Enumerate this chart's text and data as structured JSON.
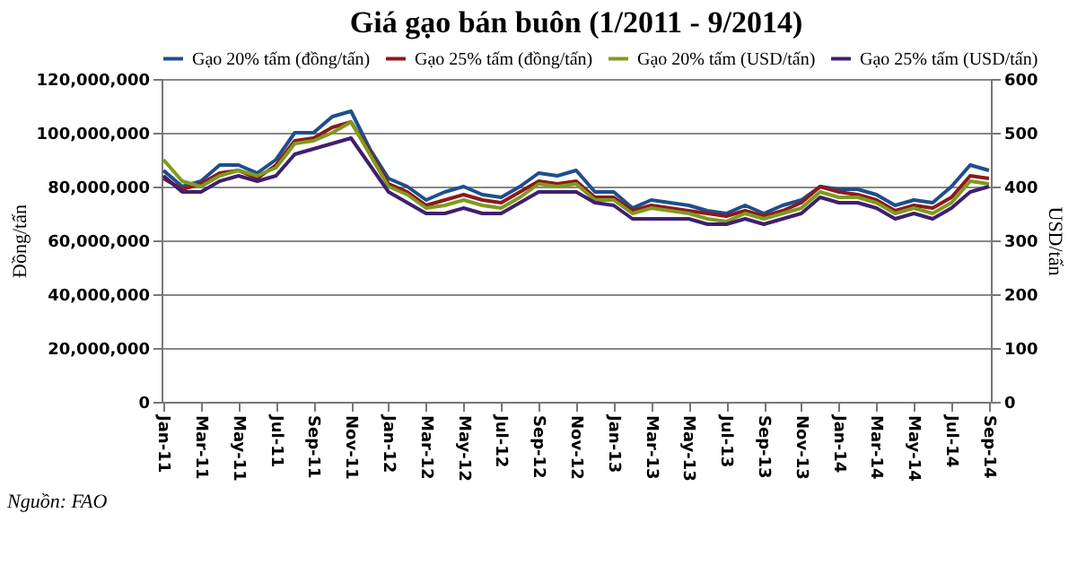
{
  "chart_data": {
    "type": "line",
    "title": "Giá gạo bán buôn (1/2011 - 9/2014)",
    "categories": [
      "Jan-11",
      null,
      "Mar-11",
      null,
      "May-11",
      null,
      "Jul-11",
      null,
      "Sep-11",
      null,
      "Nov-11",
      null,
      "Jan-12",
      null,
      "Mar-12",
      null,
      "May-12",
      null,
      "Jul-12",
      null,
      "Sep-12",
      null,
      "Nov-12",
      null,
      "Jan-13",
      null,
      "Mar-13",
      null,
      "May-13",
      null,
      "Jul-13",
      null,
      "Sep-13",
      null,
      "Nov-13",
      null,
      "Jan-14",
      null,
      "Mar-14",
      null,
      "May-14",
      null,
      "Jul-14",
      null,
      "Sep-14"
    ],
    "ylabel": "Đồng/tấn",
    "y2label": "USD/tấn",
    "ylim": [
      0,
      120000000
    ],
    "yticks": [
      0,
      {
        "value": 20000000,
        "label": "20,000,000"
      },
      {
        "value": 40000000,
        "label": "40,000,000"
      },
      {
        "value": 60000000,
        "label": "60,000,000"
      },
      {
        "value": 80000000,
        "label": "80,000,000"
      },
      {
        "value": 100000000,
        "label": "100,000,000"
      },
      {
        "value": 120000000,
        "label": "120,000,000"
      }
    ],
    "y2lim": [
      0,
      600
    ],
    "y2ticks": [
      0,
      100,
      200,
      300,
      400,
      500,
      600
    ],
    "grid": "y",
    "legend": "top",
    "marker": "none",
    "line_style": "solid",
    "series": [
      {
        "name": "Gạo 20% tấm (đồng/tấn)",
        "color": "#1f4e8c",
        "values": [
          86000000,
          80000000,
          82000000,
          88000000,
          88000000,
          85000000,
          90000000,
          100000000,
          100000000,
          106000000,
          108000000,
          94000000,
          83000000,
          80000000,
          75000000,
          78000000,
          80000000,
          77000000,
          76000000,
          80000000,
          85000000,
          84000000,
          86000000,
          78000000,
          78000000,
          72000000,
          75000000,
          74000000,
          73000000,
          71000000,
          70000000,
          73000000,
          70000000,
          73000000,
          75000000,
          80000000,
          79000000,
          79000000,
          77000000,
          73000000,
          75000000,
          74000000,
          80000000,
          88000000,
          86000000
        ]
      },
      {
        "name": "Gạo 25% tấm (đồng/tấn)",
        "color": "#8b1a1a",
        "values": [
          83000000,
          79000000,
          81000000,
          85000000,
          86000000,
          83000000,
          88000000,
          97000000,
          98000000,
          102000000,
          104000000,
          93000000,
          81000000,
          78000000,
          73000000,
          75000000,
          77000000,
          75000000,
          74000000,
          78000000,
          82000000,
          81000000,
          82000000,
          76000000,
          76000000,
          71000000,
          73000000,
          72000000,
          71000000,
          70000000,
          69000000,
          71000000,
          69000000,
          71000000,
          74000000,
          80000000,
          78000000,
          77000000,
          75000000,
          71000000,
          73000000,
          72000000,
          76000000,
          84000000,
          83000000
        ]
      },
      {
        "name": "Gạo 20% tấm (USD/tấn)",
        "color": "#7f9a1f",
        "axis": "y2",
        "values": [
          450,
          410,
          400,
          420,
          430,
          420,
          435,
          480,
          485,
          500,
          520,
          460,
          400,
          385,
          360,
          365,
          375,
          365,
          360,
          380,
          405,
          400,
          405,
          375,
          375,
          350,
          360,
          355,
          350,
          340,
          335,
          350,
          340,
          350,
          360,
          390,
          380,
          380,
          370,
          350,
          360,
          350,
          370,
          410,
          405
        ]
      },
      {
        "name": "Gạo 25% tấm (USD/tấn)",
        "color": "#3f1f6e",
        "axis": "y2",
        "values": [
          420,
          390,
          390,
          410,
          420,
          410,
          420,
          460,
          470,
          480,
          490,
          440,
          390,
          370,
          350,
          350,
          360,
          350,
          350,
          370,
          390,
          390,
          390,
          370,
          365,
          340,
          340,
          340,
          340,
          330,
          330,
          340,
          330,
          340,
          350,
          380,
          370,
          370,
          360,
          340,
          350,
          340,
          360,
          390,
          400
        ]
      }
    ],
    "annotations": [
      "Nguồn: FAO"
    ]
  }
}
